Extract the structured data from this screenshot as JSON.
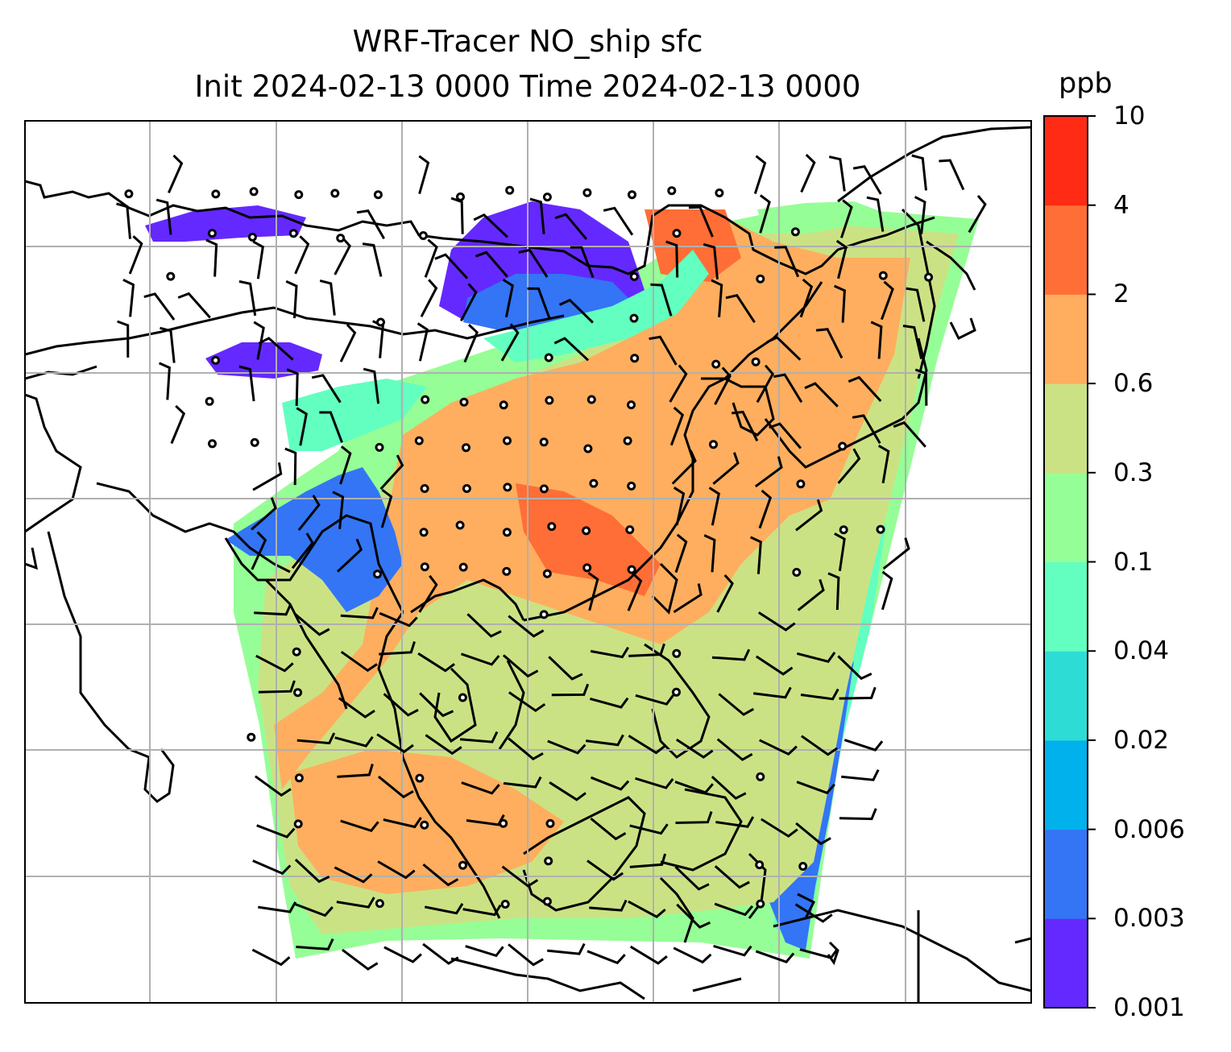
{
  "title": {
    "line1": "WRF-Tracer NO_ship sfc",
    "line2": "Init 2024-02-13 0000 Time 2024-02-13 0000"
  },
  "colorbar": {
    "unit": "ppb",
    "levels": [
      "0.001",
      "0.003",
      "0.006",
      "0.02",
      "0.04",
      "0.1",
      "0.3",
      "0.6",
      "2",
      "4",
      "10"
    ],
    "colors": [
      "#6429ff",
      "#3375f5",
      "#00b1ec",
      "#2edcd6",
      "#62ffc0",
      "#96fe96",
      "#cbe284",
      "#feae5e",
      "#ff6e36",
      "#ff2b14"
    ]
  },
  "map": {
    "gridlines": true,
    "coastline_color": "#000000",
    "wind_barbs": true,
    "calm_markers": true
  }
}
